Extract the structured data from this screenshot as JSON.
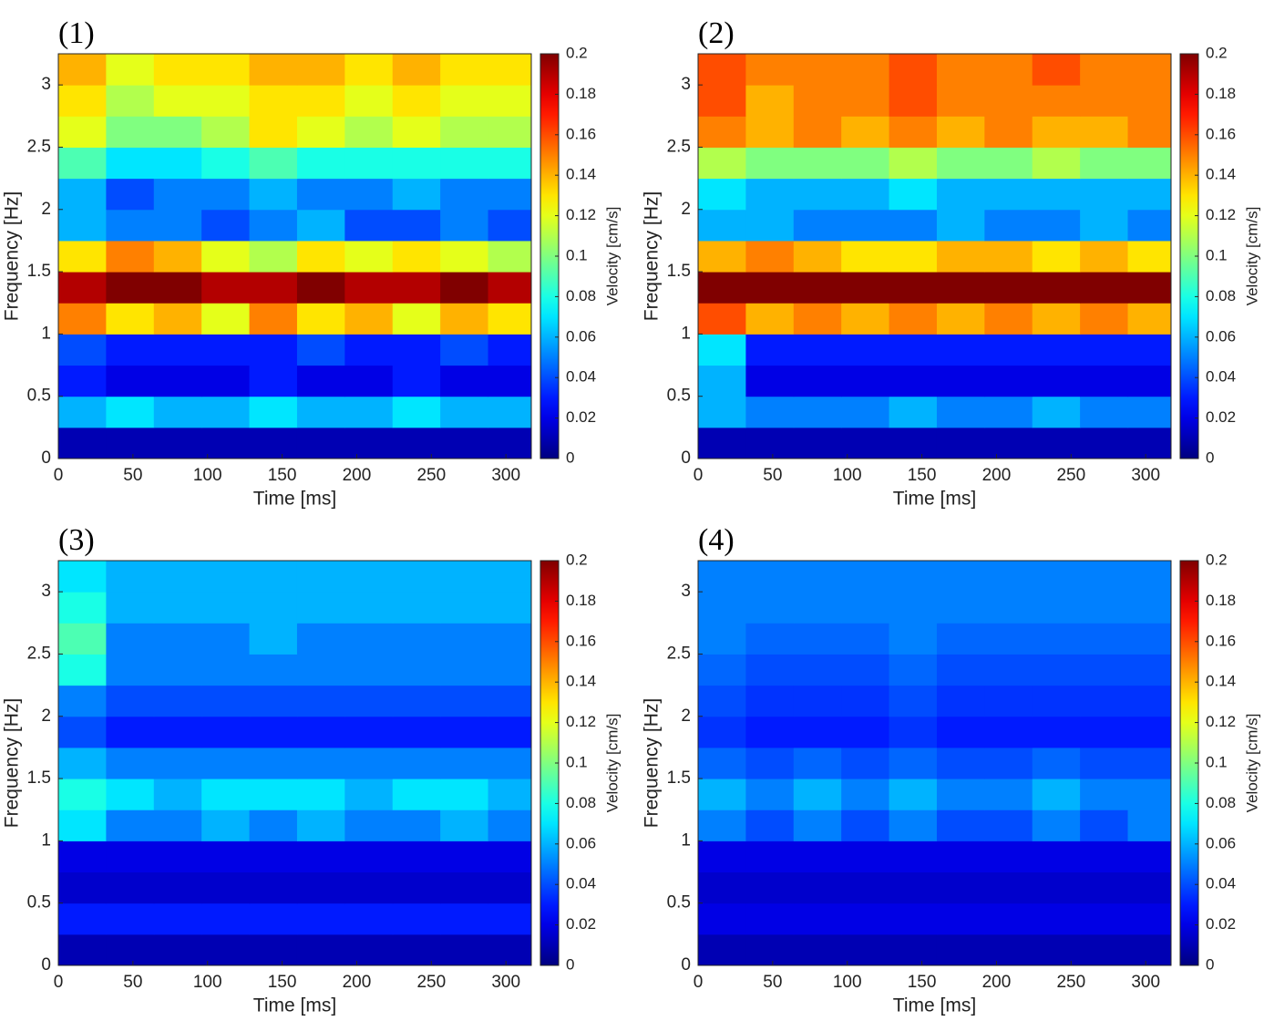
{
  "chart_data": [
    {
      "type": "heatmap",
      "title": "(1)",
      "x_label": "Time [ms]",
      "y_label": "Frequency [Hz]",
      "colorbar_label": "Velocity [cm/s]",
      "colormap": "jet",
      "x": [
        16,
        48,
        80,
        112,
        144,
        176,
        208,
        240,
        272,
        304
      ],
      "y": [
        0.125,
        0.375,
        0.625,
        0.875,
        1.125,
        1.375,
        1.625,
        1.875,
        2.125,
        2.375,
        2.625,
        2.875,
        3.125
      ],
      "z": [
        [
          0.01,
          0.01,
          0.01,
          0.01,
          0.01,
          0.01,
          0.01,
          0.01,
          0.01,
          0.01
        ],
        [
          0.06,
          0.07,
          0.06,
          0.06,
          0.07,
          0.06,
          0.06,
          0.07,
          0.06,
          0.06
        ],
        [
          0.03,
          0.02,
          0.02,
          0.02,
          0.03,
          0.02,
          0.02,
          0.03,
          0.02,
          0.02
        ],
        [
          0.04,
          0.03,
          0.03,
          0.03,
          0.03,
          0.04,
          0.03,
          0.03,
          0.04,
          0.03
        ],
        [
          0.15,
          0.13,
          0.14,
          0.12,
          0.15,
          0.13,
          0.14,
          0.12,
          0.14,
          0.13
        ],
        [
          0.19,
          0.2,
          0.2,
          0.19,
          0.19,
          0.2,
          0.19,
          0.19,
          0.2,
          0.19
        ],
        [
          0.13,
          0.15,
          0.14,
          0.12,
          0.11,
          0.13,
          0.12,
          0.13,
          0.12,
          0.11
        ],
        [
          0.06,
          0.05,
          0.05,
          0.04,
          0.05,
          0.06,
          0.04,
          0.04,
          0.05,
          0.04
        ],
        [
          0.06,
          0.04,
          0.05,
          0.05,
          0.06,
          0.05,
          0.05,
          0.06,
          0.05,
          0.05
        ],
        [
          0.09,
          0.07,
          0.07,
          0.08,
          0.09,
          0.08,
          0.08,
          0.08,
          0.08,
          0.08
        ],
        [
          0.12,
          0.1,
          0.1,
          0.11,
          0.13,
          0.12,
          0.11,
          0.12,
          0.11,
          0.11
        ],
        [
          0.13,
          0.11,
          0.12,
          0.12,
          0.13,
          0.13,
          0.12,
          0.13,
          0.12,
          0.12
        ],
        [
          0.14,
          0.12,
          0.13,
          0.13,
          0.14,
          0.14,
          0.13,
          0.14,
          0.13,
          0.13
        ]
      ],
      "xlim": [
        0,
        317
      ],
      "ylim": [
        0,
        3.25
      ],
      "xticks": [
        0,
        50,
        100,
        150,
        200,
        250,
        300
      ],
      "yticks": [
        0,
        0.5,
        1,
        1.5,
        2,
        2.5,
        3
      ],
      "zlim": [
        0,
        0.2
      ],
      "zticks": [
        0,
        0.02,
        0.04,
        0.06,
        0.08,
        0.1,
        0.12,
        0.14,
        0.16,
        0.18,
        0.2
      ]
    },
    {
      "type": "heatmap",
      "title": "(2)",
      "x_label": "Time [ms]",
      "y_label": "Frequency [Hz]",
      "colorbar_label": "Velocity [cm/s]",
      "colormap": "jet",
      "x": [
        16,
        48,
        80,
        112,
        144,
        176,
        208,
        240,
        272,
        304
      ],
      "y": [
        0.125,
        0.375,
        0.625,
        0.875,
        1.125,
        1.375,
        1.625,
        1.875,
        2.125,
        2.375,
        2.625,
        2.875,
        3.125
      ],
      "z": [
        [
          0.01,
          0.01,
          0.01,
          0.01,
          0.01,
          0.01,
          0.01,
          0.01,
          0.01,
          0.01
        ],
        [
          0.06,
          0.05,
          0.05,
          0.05,
          0.06,
          0.05,
          0.05,
          0.06,
          0.05,
          0.05
        ],
        [
          0.06,
          0.02,
          0.02,
          0.02,
          0.02,
          0.02,
          0.02,
          0.02,
          0.02,
          0.02
        ],
        [
          0.07,
          0.03,
          0.03,
          0.03,
          0.03,
          0.03,
          0.03,
          0.03,
          0.03,
          0.03
        ],
        [
          0.16,
          0.14,
          0.15,
          0.14,
          0.15,
          0.14,
          0.15,
          0.14,
          0.15,
          0.14
        ],
        [
          0.2,
          0.2,
          0.2,
          0.2,
          0.2,
          0.2,
          0.2,
          0.2,
          0.2,
          0.2
        ],
        [
          0.14,
          0.15,
          0.14,
          0.13,
          0.13,
          0.14,
          0.14,
          0.13,
          0.14,
          0.13
        ],
        [
          0.06,
          0.06,
          0.05,
          0.05,
          0.05,
          0.06,
          0.05,
          0.05,
          0.06,
          0.05
        ],
        [
          0.07,
          0.06,
          0.06,
          0.06,
          0.07,
          0.06,
          0.06,
          0.06,
          0.06,
          0.06
        ],
        [
          0.11,
          0.1,
          0.1,
          0.1,
          0.11,
          0.1,
          0.1,
          0.11,
          0.1,
          0.1
        ],
        [
          0.15,
          0.14,
          0.15,
          0.14,
          0.15,
          0.14,
          0.15,
          0.14,
          0.14,
          0.15
        ],
        [
          0.16,
          0.14,
          0.15,
          0.15,
          0.16,
          0.15,
          0.15,
          0.15,
          0.15,
          0.15
        ],
        [
          0.16,
          0.15,
          0.15,
          0.15,
          0.16,
          0.15,
          0.15,
          0.16,
          0.15,
          0.15
        ]
      ],
      "xlim": [
        0,
        317
      ],
      "ylim": [
        0,
        3.25
      ],
      "xticks": [
        0,
        50,
        100,
        150,
        200,
        250,
        300
      ],
      "yticks": [
        0,
        0.5,
        1,
        1.5,
        2,
        2.5,
        3
      ],
      "zlim": [
        0,
        0.2
      ],
      "zticks": [
        0,
        0.02,
        0.04,
        0.06,
        0.08,
        0.1,
        0.12,
        0.14,
        0.16,
        0.18,
        0.2
      ]
    },
    {
      "type": "heatmap",
      "title": "(3)",
      "x_label": "Time [ms]",
      "y_label": "Frequency [Hz]",
      "colorbar_label": "Velocity [cm/s]",
      "colormap": "jet",
      "x": [
        16,
        48,
        80,
        112,
        144,
        176,
        208,
        240,
        272,
        304
      ],
      "y": [
        0.125,
        0.375,
        0.625,
        0.875,
        1.125,
        1.375,
        1.625,
        1.875,
        2.125,
        2.375,
        2.625,
        2.875,
        3.125
      ],
      "z": [
        [
          0.01,
          0.01,
          0.01,
          0.01,
          0.01,
          0.01,
          0.01,
          0.01,
          0.01,
          0.01
        ],
        [
          0.03,
          0.03,
          0.03,
          0.03,
          0.03,
          0.03,
          0.03,
          0.03,
          0.03,
          0.03
        ],
        [
          0.015,
          0.015,
          0.015,
          0.015,
          0.015,
          0.015,
          0.015,
          0.015,
          0.015,
          0.015
        ],
        [
          0.02,
          0.02,
          0.02,
          0.02,
          0.02,
          0.02,
          0.02,
          0.02,
          0.02,
          0.02
        ],
        [
          0.07,
          0.05,
          0.05,
          0.06,
          0.05,
          0.06,
          0.05,
          0.05,
          0.06,
          0.05
        ],
        [
          0.08,
          0.07,
          0.06,
          0.07,
          0.07,
          0.07,
          0.06,
          0.07,
          0.07,
          0.06
        ],
        [
          0.06,
          0.05,
          0.05,
          0.05,
          0.05,
          0.05,
          0.05,
          0.05,
          0.05,
          0.05
        ],
        [
          0.04,
          0.03,
          0.03,
          0.03,
          0.03,
          0.03,
          0.03,
          0.03,
          0.03,
          0.03
        ],
        [
          0.05,
          0.04,
          0.04,
          0.04,
          0.04,
          0.04,
          0.04,
          0.04,
          0.04,
          0.04
        ],
        [
          0.08,
          0.05,
          0.05,
          0.05,
          0.05,
          0.05,
          0.05,
          0.05,
          0.05,
          0.05
        ],
        [
          0.09,
          0.05,
          0.05,
          0.05,
          0.06,
          0.05,
          0.05,
          0.05,
          0.05,
          0.05
        ],
        [
          0.08,
          0.06,
          0.06,
          0.06,
          0.06,
          0.06,
          0.06,
          0.06,
          0.06,
          0.06
        ],
        [
          0.07,
          0.06,
          0.06,
          0.06,
          0.06,
          0.06,
          0.06,
          0.06,
          0.06,
          0.06
        ]
      ],
      "xlim": [
        0,
        317
      ],
      "ylim": [
        0,
        3.25
      ],
      "xticks": [
        0,
        50,
        100,
        150,
        200,
        250,
        300
      ],
      "yticks": [
        0,
        0.5,
        1,
        1.5,
        2,
        2.5,
        3
      ],
      "zlim": [
        0,
        0.2
      ],
      "zticks": [
        0,
        0.02,
        0.04,
        0.06,
        0.08,
        0.1,
        0.12,
        0.14,
        0.16,
        0.18,
        0.2
      ]
    },
    {
      "type": "heatmap",
      "title": "(4)",
      "x_label": "Time [ms]",
      "y_label": "Frequency [Hz]",
      "colorbar_label": "Velocity [cm/s]",
      "colormap": "jet",
      "x": [
        16,
        48,
        80,
        112,
        144,
        176,
        208,
        240,
        272,
        304
      ],
      "y": [
        0.125,
        0.375,
        0.625,
        0.875,
        1.125,
        1.375,
        1.625,
        1.875,
        2.125,
        2.375,
        2.625,
        2.875,
        3.125
      ],
      "z": [
        [
          0.01,
          0.01,
          0.01,
          0.01,
          0.01,
          0.01,
          0.01,
          0.01,
          0.01,
          0.01
        ],
        [
          0.02,
          0.02,
          0.02,
          0.02,
          0.02,
          0.02,
          0.02,
          0.02,
          0.02,
          0.02
        ],
        [
          0.015,
          0.015,
          0.015,
          0.015,
          0.015,
          0.015,
          0.015,
          0.015,
          0.015,
          0.015
        ],
        [
          0.02,
          0.02,
          0.02,
          0.02,
          0.02,
          0.02,
          0.02,
          0.02,
          0.02,
          0.02
        ],
        [
          0.05,
          0.04,
          0.05,
          0.04,
          0.05,
          0.04,
          0.04,
          0.05,
          0.04,
          0.05
        ],
        [
          0.06,
          0.05,
          0.06,
          0.05,
          0.06,
          0.05,
          0.05,
          0.06,
          0.05,
          0.05
        ],
        [
          0.045,
          0.04,
          0.045,
          0.04,
          0.045,
          0.04,
          0.04,
          0.045,
          0.04,
          0.04
        ],
        [
          0.035,
          0.03,
          0.03,
          0.03,
          0.035,
          0.03,
          0.03,
          0.03,
          0.03,
          0.03
        ],
        [
          0.04,
          0.035,
          0.035,
          0.035,
          0.04,
          0.035,
          0.035,
          0.035,
          0.035,
          0.035
        ],
        [
          0.045,
          0.04,
          0.04,
          0.04,
          0.045,
          0.04,
          0.04,
          0.04,
          0.04,
          0.04
        ],
        [
          0.05,
          0.045,
          0.045,
          0.045,
          0.05,
          0.045,
          0.045,
          0.045,
          0.045,
          0.045
        ],
        [
          0.05,
          0.05,
          0.05,
          0.05,
          0.05,
          0.05,
          0.05,
          0.05,
          0.05,
          0.05
        ],
        [
          0.05,
          0.05,
          0.05,
          0.05,
          0.05,
          0.05,
          0.05,
          0.05,
          0.05,
          0.05
        ]
      ],
      "xlim": [
        0,
        317
      ],
      "ylim": [
        0,
        3.25
      ],
      "xticks": [
        0,
        50,
        100,
        150,
        200,
        250,
        300
      ],
      "yticks": [
        0,
        0.5,
        1,
        1.5,
        2,
        2.5,
        3
      ],
      "zlim": [
        0,
        0.2
      ],
      "zticks": [
        0,
        0.02,
        0.04,
        0.06,
        0.08,
        0.1,
        0.12,
        0.14,
        0.16,
        0.18,
        0.2
      ]
    }
  ]
}
